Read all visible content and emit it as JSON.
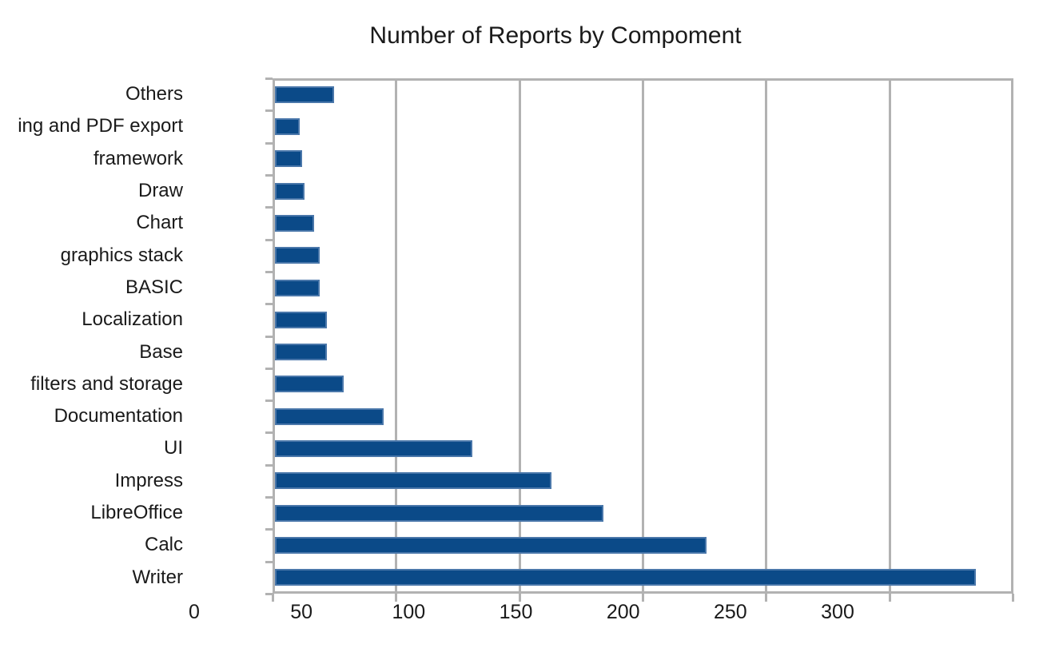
{
  "chart_data": {
    "type": "bar",
    "orientation": "horizontal",
    "title": "Number of Reports by Compoment",
    "categories": [
      "Others",
      "ing and PDF export",
      "framework",
      "Draw",
      "Chart",
      "graphics stack",
      "BASIC",
      "Localization",
      "Base",
      "filters and storage",
      "Documentation",
      "UI",
      "Impress",
      "LibreOffice",
      "Calc",
      "Writer"
    ],
    "values": [
      24,
      10,
      11,
      12,
      16,
      18,
      18,
      21,
      21,
      28,
      44,
      80,
      112,
      133,
      175,
      284
    ],
    "x_ticks": [
      0,
      50,
      100,
      150,
      200,
      250,
      300
    ],
    "xlim": [
      0,
      300
    ],
    "xlabel": "",
    "ylabel": "",
    "grid": true,
    "legend_position": "none",
    "colors": {
      "bar_fill": "#0b4a88",
      "bar_border": "#4a77aa",
      "grid": "#b2b2b2",
      "text": "#1a1a1a",
      "background": "#ffffff"
    }
  }
}
